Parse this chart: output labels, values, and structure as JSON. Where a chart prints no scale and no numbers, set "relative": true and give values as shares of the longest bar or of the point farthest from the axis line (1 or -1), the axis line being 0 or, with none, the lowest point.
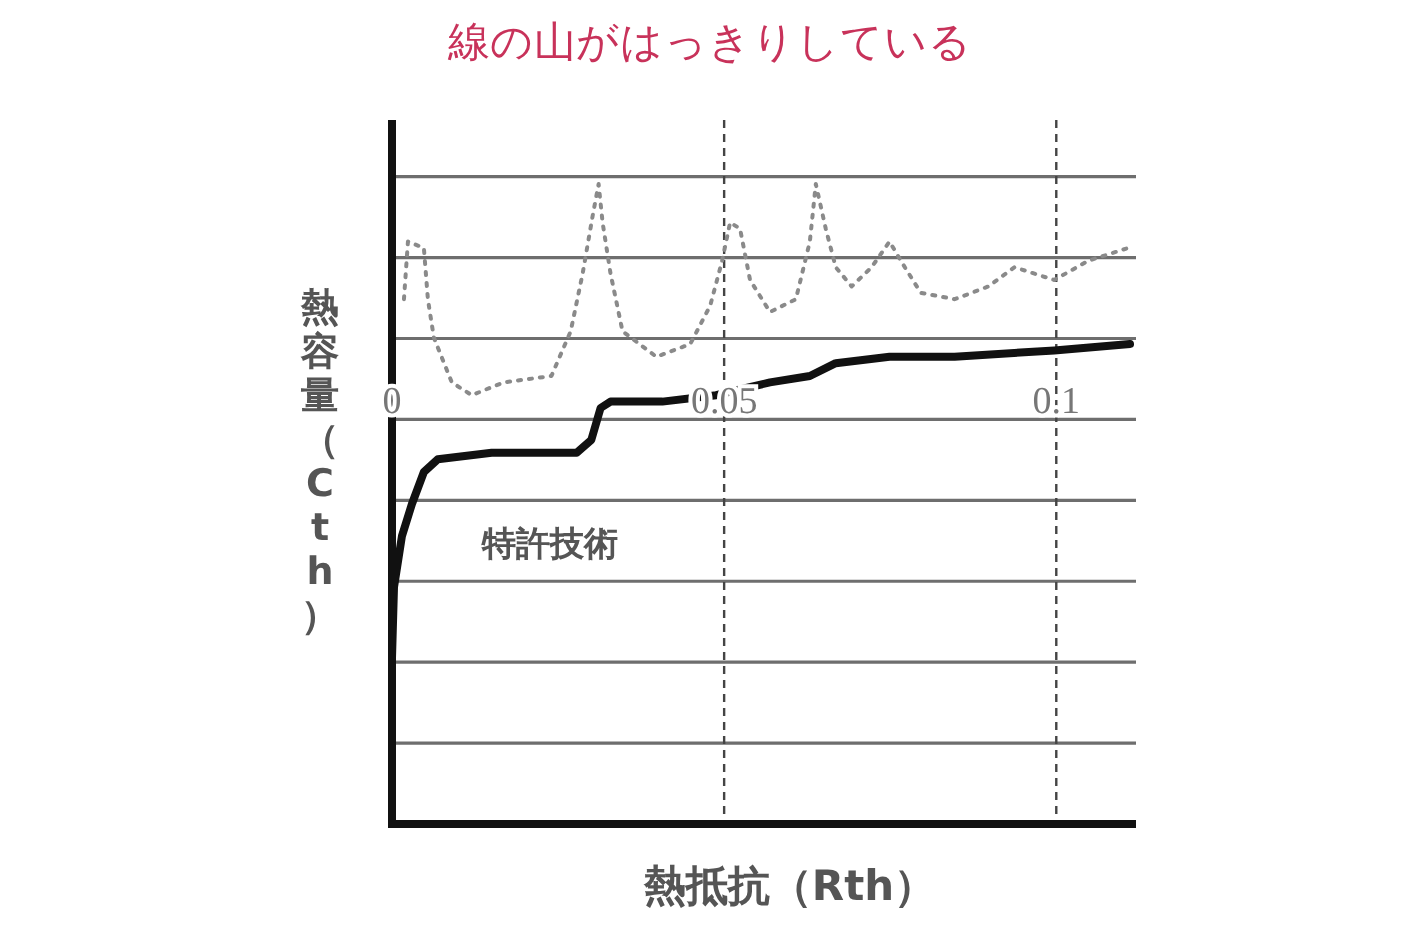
{
  "chart_data": {
    "type": "line",
    "title": "線の山がはっきりしている",
    "xlabel": "熱抵抗（Rth）",
    "ylabel": "熱容量（Cth）",
    "relative": true,
    "xlim": [
      0,
      0.112
    ],
    "xticks": [
      0,
      0.05,
      0.1
    ],
    "grid": true,
    "marker": "none",
    "series": [
      {
        "color": "#8a8a8a",
        "line_style": "dotted",
        "x": [
          0.0018,
          0.0024,
          0.0048,
          0.0054,
          0.0063,
          0.009,
          0.012,
          0.0168,
          0.024,
          0.0269,
          0.0287,
          0.0302,
          0.0311,
          0.0317,
          0.0329,
          0.0347,
          0.0398,
          0.0449,
          0.0479,
          0.0497,
          0.0509,
          0.0524,
          0.0539,
          0.0569,
          0.0608,
          0.0629,
          0.0638,
          0.0653,
          0.0668,
          0.0692,
          0.0722,
          0.0749,
          0.0766,
          0.0796,
          0.0847,
          0.0898,
          0.0937,
          0.0997,
          0.1048,
          0.1108
        ],
        "values": [
          0.82,
          0.91,
          0.9,
          0.82,
          0.76,
          0.69,
          0.67,
          0.69,
          0.7,
          0.77,
          0.86,
          0.95,
          1.0,
          0.94,
          0.86,
          0.77,
          0.73,
          0.75,
          0.81,
          0.88,
          0.94,
          0.93,
          0.85,
          0.8,
          0.82,
          0.91,
          1.0,
          0.93,
          0.87,
          0.84,
          0.87,
          0.91,
          0.88,
          0.83,
          0.82,
          0.84,
          0.87,
          0.85,
          0.88,
          0.9
        ]
      },
      {
        "name": "特許技術",
        "color": "#111111",
        "line_style": "solid",
        "x": [
          0,
          0,
          0.0003,
          0.0015,
          0.003,
          0.0048,
          0.0069,
          0.015,
          0.0219,
          0.0278,
          0.03,
          0.0314,
          0.0329,
          0.0407,
          0.0488,
          0.0527,
          0.0569,
          0.0629,
          0.0668,
          0.0749,
          0.0847,
          0.0997,
          0.1111
        ],
        "values": [
          0,
          0.26,
          0.37,
          0.45,
          0.5,
          0.55,
          0.57,
          0.58,
          0.58,
          0.58,
          0.6,
          0.65,
          0.66,
          0.66,
          0.67,
          0.68,
          0.69,
          0.7,
          0.72,
          0.73,
          0.73,
          0.74,
          0.75
        ]
      }
    ]
  }
}
